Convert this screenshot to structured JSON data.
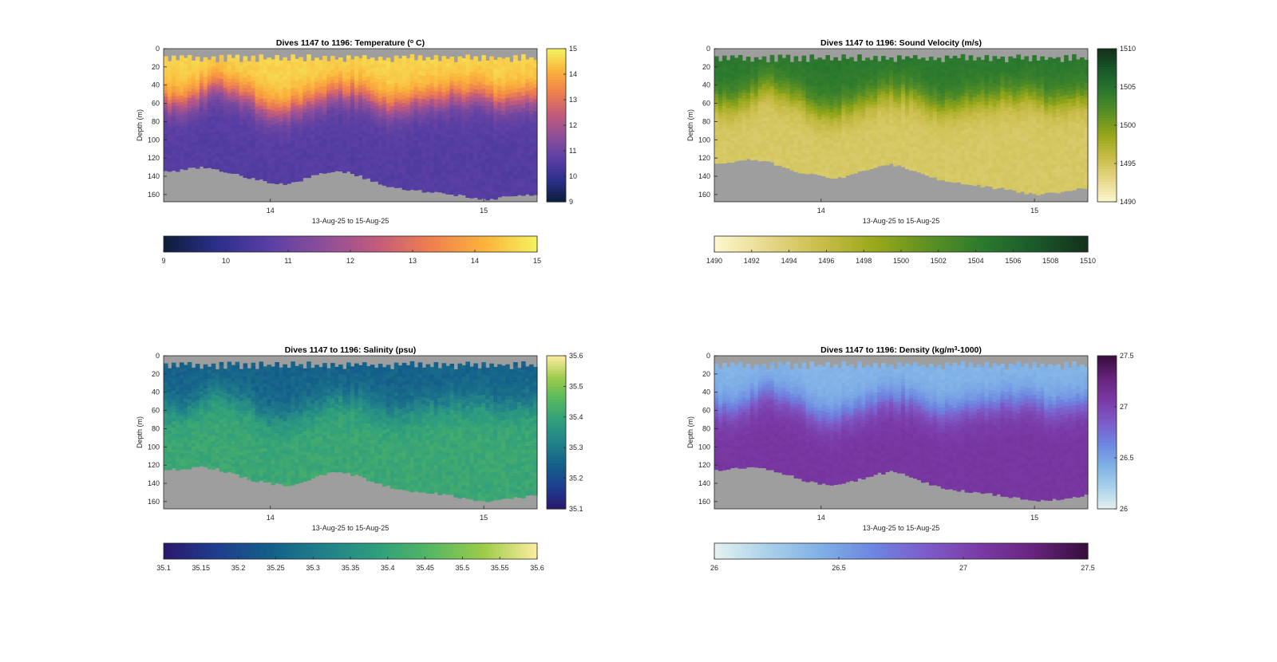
{
  "figure": {
    "background": "#ffffff",
    "nodata_color": "#9e9e9e"
  },
  "chart_data": [
    {
      "type": "heatmap",
      "title": "Dives 1147 to 1196: Temperature (°C)",
      "title_parts": {
        "pre": "Dives 1147 to 1196: Temperature (",
        "sup": "o",
        "post": " C)"
      },
      "xlabel": "13-Aug-25 to 15-Aug-25",
      "ylabel": "Depth (m)",
      "x_ticks": [
        "14",
        "15"
      ],
      "x_tick_values": [
        14.0,
        15.0
      ],
      "xlim": [
        13.5,
        15.25
      ],
      "y_ticks": [
        "0",
        "20",
        "40",
        "60",
        "80",
        "100",
        "120",
        "140",
        "160"
      ],
      "ylim": [
        0,
        168
      ],
      "y_reversed": true,
      "colorbar_ticks": [
        "9",
        "10",
        "11",
        "12",
        "13",
        "14",
        "15"
      ],
      "colorbar_h_ticks": [
        "9",
        "10",
        "11",
        "12",
        "13",
        "14",
        "15"
      ],
      "clim": [
        9,
        15
      ],
      "colormap": "thermal",
      "colors": [
        "#0b1e3a",
        "#2c2f8a",
        "#5b3fa4",
        "#8d4f9a",
        "#c25b7c",
        "#ef7f4e",
        "#fbb33c",
        "#f4f25e"
      ],
      "profile": {
        "surface_value": 14.6,
        "deep_value": 10.6,
        "noise": 0.25
      },
      "bottom_depth_m": [
        135,
        133,
        130,
        132,
        137,
        142,
        147,
        149,
        142,
        136,
        134,
        139,
        147,
        152,
        155,
        157,
        159,
        162,
        165,
        163,
        161,
        160
      ],
      "thermocline_depth_m": [
        58,
        62,
        50,
        42,
        48,
        58,
        66,
        68,
        60,
        52,
        47,
        50,
        58,
        64,
        60,
        56,
        52,
        50,
        55,
        58,
        56,
        54
      ]
    },
    {
      "type": "heatmap",
      "title": "Dives 1147 to 1196: Sound Velocity (m/s)",
      "xlabel": "13-Aug-25 to 15-Aug-25",
      "ylabel": "Depth (m)",
      "x_ticks": [
        "14",
        "15"
      ],
      "x_tick_values": [
        14.0,
        15.0
      ],
      "xlim": [
        13.5,
        15.25
      ],
      "y_ticks": [
        "0",
        "20",
        "40",
        "60",
        "80",
        "100",
        "120",
        "140",
        "160"
      ],
      "ylim": [
        0,
        168
      ],
      "y_reversed": true,
      "colorbar_ticks": [
        "1490",
        "1495",
        "1500",
        "1505",
        "1510"
      ],
      "colorbar_h_ticks": [
        "1490",
        "1492",
        "1494",
        "1496",
        "1498",
        "1500",
        "1502",
        "1504",
        "1506",
        "1508",
        "1510"
      ],
      "clim": [
        1490,
        1510
      ],
      "colormap": "speed",
      "colors": [
        "#fdf8cf",
        "#e7d88a",
        "#c9bd4a",
        "#9aa81a",
        "#5e9123",
        "#2c7a2e",
        "#1a5a2a",
        "#13301b"
      ],
      "profile": {
        "surface_value": 1504.5,
        "deep_value": 1494.5,
        "noise": 0.8
      },
      "bottom_depth_m": [
        125,
        124,
        121,
        124,
        130,
        136,
        140,
        142,
        136,
        130,
        127,
        132,
        140,
        145,
        148,
        150,
        153,
        156,
        160,
        158,
        155,
        153
      ],
      "thermocline_depth_m": [
        58,
        62,
        50,
        42,
        48,
        58,
        66,
        68,
        60,
        52,
        47,
        50,
        58,
        64,
        60,
        56,
        52,
        50,
        55,
        58,
        56,
        54
      ]
    },
    {
      "type": "heatmap",
      "title": "Dives 1147 to 1196: Salinity (psu)",
      "xlabel": "13-Aug-25 to 15-Aug-25",
      "ylabel": "Depth (m)",
      "x_ticks": [
        "14",
        "15"
      ],
      "x_tick_values": [
        14.0,
        15.0
      ],
      "xlim": [
        13.5,
        15.25
      ],
      "y_ticks": [
        "0",
        "20",
        "40",
        "60",
        "80",
        "100",
        "120",
        "140",
        "160"
      ],
      "ylim": [
        0,
        168
      ],
      "y_reversed": true,
      "colorbar_ticks": [
        "35.1",
        "35.2",
        "35.3",
        "35.4",
        "35.5",
        "35.6"
      ],
      "colorbar_h_ticks": [
        "35.1",
        "35.15",
        "35.2",
        "35.25",
        "35.3",
        "35.35",
        "35.4",
        "35.45",
        "35.5",
        "35.55",
        "35.6"
      ],
      "clim": [
        35.1,
        35.6
      ],
      "colormap": "haline",
      "colors": [
        "#2a186c",
        "#1f3d8e",
        "#145f8a",
        "#21808a",
        "#2f9e7d",
        "#55b761",
        "#9ccc4a",
        "#fdeda0"
      ],
      "profile": {
        "surface_value": 35.25,
        "deep_value": 35.41,
        "noise": 0.04
      },
      "bottom_depth_m": [
        125,
        124,
        121,
        124,
        130,
        136,
        140,
        142,
        136,
        130,
        127,
        132,
        140,
        145,
        148,
        150,
        153,
        156,
        160,
        158,
        155,
        153
      ],
      "thermocline_depth_m": [
        58,
        62,
        50,
        42,
        48,
        58,
        66,
        68,
        60,
        52,
        47,
        50,
        58,
        64,
        60,
        56,
        52,
        50,
        55,
        58,
        56,
        54
      ]
    },
    {
      "type": "heatmap",
      "title": "Dives 1147 to 1196: Density (kg/m³-1000)",
      "title_parts": {
        "pre": "Dives 1147 to 1196: Density (kg/m",
        "sup": "3",
        "post": "-1000)"
      },
      "xlabel": "13-Aug-25 to 15-Aug-25",
      "ylabel": "Depth (m)",
      "x_ticks": [
        "14",
        "15"
      ],
      "x_tick_values": [
        14.0,
        15.0
      ],
      "xlim": [
        13.5,
        15.25
      ],
      "y_ticks": [
        "0",
        "20",
        "40",
        "60",
        "80",
        "100",
        "120",
        "140",
        "160"
      ],
      "ylim": [
        0,
        168
      ],
      "y_reversed": true,
      "colorbar_ticks": [
        "26",
        "26.5",
        "27",
        "27.5"
      ],
      "colorbar_h_ticks": [
        "26",
        "26.5",
        "27",
        "27.5"
      ],
      "clim": [
        26,
        27.5
      ],
      "colormap": "dense",
      "colors": [
        "#e6f1f1",
        "#a9d1ea",
        "#7fb0e6",
        "#6d85e0",
        "#7e5ac8",
        "#7a3aa6",
        "#67237c",
        "#360d3c"
      ],
      "profile": {
        "surface_value": 26.4,
        "deep_value": 27.1,
        "noise": 0.05
      },
      "bottom_depth_m": [
        125,
        124,
        121,
        124,
        130,
        136,
        140,
        142,
        136,
        130,
        127,
        132,
        140,
        145,
        148,
        150,
        153,
        156,
        160,
        158,
        155,
        153
      ],
      "thermocline_depth_m": [
        58,
        62,
        50,
        42,
        48,
        58,
        66,
        68,
        60,
        52,
        47,
        50,
        58,
        64,
        60,
        56,
        52,
        50,
        55,
        58,
        56,
        54
      ]
    }
  ]
}
